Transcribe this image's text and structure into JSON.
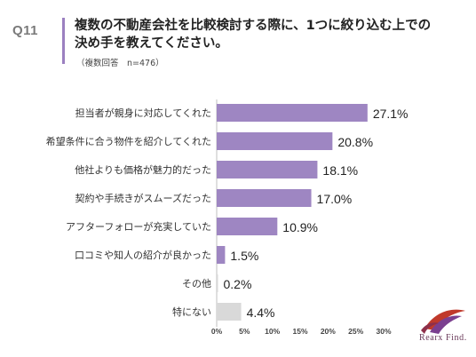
{
  "header": {
    "question_no": "Q11",
    "title_line1": "複数の不動産会社を比較検討する際に、1つに絞り込む上での",
    "title_line2": "決め手を教えてください。",
    "note": "（複数回答　n=476）"
  },
  "brand": {
    "name": "Rearx Find."
  },
  "colors": {
    "bar": "#9e86c2",
    "bar_other": "#d9d9d9",
    "accent": "#9b80c0"
  },
  "chart_data": {
    "type": "bar",
    "orientation": "horizontal",
    "categories": [
      "担当者が親身に対応してくれた",
      "希望条件に合う物件を紹介してくれた",
      "他社よりも価格が魅力的だった",
      "契約や手続きがスムーズだった",
      "アフターフォローが充実していた",
      "口コミや知人の紹介が良かった",
      "その他",
      "特にない"
    ],
    "values": [
      27.1,
      20.8,
      18.1,
      17.0,
      10.9,
      1.5,
      0.2,
      4.4
    ],
    "value_labels": [
      "27.1%",
      "20.8%",
      "18.1%",
      "17.0%",
      "10.9%",
      "1.5%",
      "0.2%",
      "4.4%"
    ],
    "bar_colors": [
      "#9e86c2",
      "#9e86c2",
      "#9e86c2",
      "#9e86c2",
      "#9e86c2",
      "#9e86c2",
      "#d9d9d9",
      "#d9d9d9"
    ],
    "xlim": [
      0,
      30
    ],
    "xticks": [
      0,
      5,
      10,
      15,
      20,
      25,
      30
    ],
    "xtick_labels": [
      "0%",
      "5%",
      "10%",
      "15%",
      "20%",
      "25%",
      "30%"
    ],
    "grid": false
  }
}
